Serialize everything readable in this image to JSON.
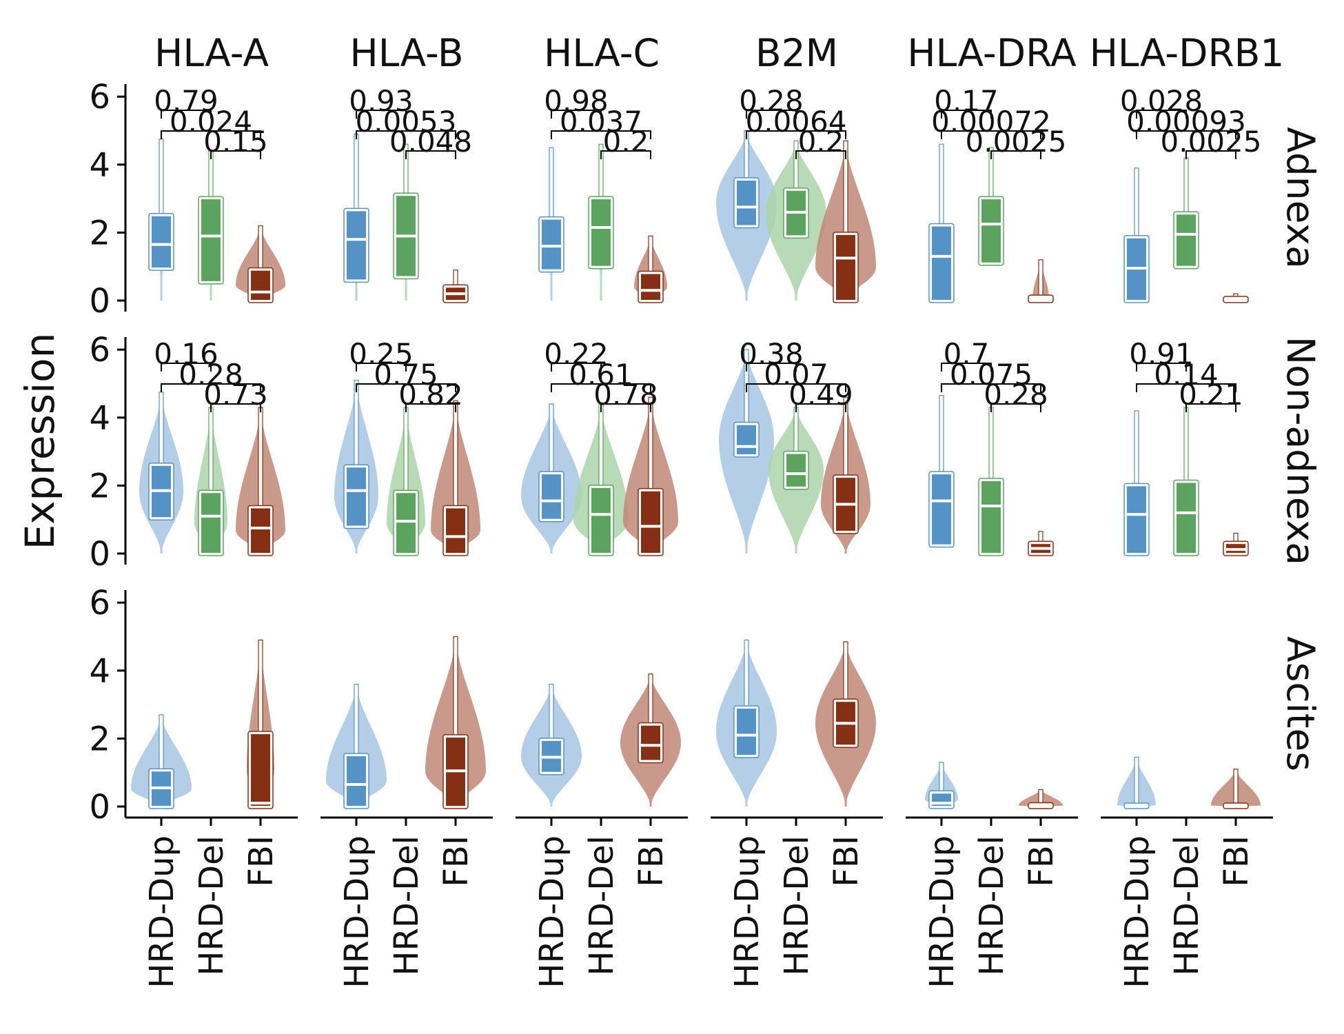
{
  "chart_data": {
    "type": "violin",
    "ylabel": "Expression",
    "ylim": [
      0,
      6.3
    ],
    "yticks": [
      "0",
      "2",
      "4",
      "6"
    ],
    "categories": [
      "HRD-Dup",
      "HRD-Del",
      "FBI"
    ],
    "columns": [
      "HLA-A",
      "HLA-B",
      "HLA-C",
      "B2M",
      "HLA-DRA",
      "HLA-DRB1"
    ],
    "rows": [
      "Adnexa",
      "Non-adnexa",
      "Ascites"
    ],
    "series_colors": {
      "HRD-Dup": {
        "violin": "#a8c6e3",
        "box": "#5592c6"
      },
      "HRD-Del": {
        "violin": "#acd3a9",
        "box": "#5ba35e"
      },
      "FBI": {
        "violin": "#bf8878",
        "box": "#852f14"
      }
    },
    "pvalues": [
      [
        [
          "0.79",
          "0.024",
          "0.15"
        ],
        [
          "0.93",
          "0.0053",
          "0.048"
        ],
        [
          "0.98",
          "0.037",
          "0.2"
        ],
        [
          "0.28",
          "0.0064",
          "0.2"
        ],
        [
          "0.17",
          "0.00072",
          "0.0025"
        ],
        [
          "0.028",
          "0.00093",
          "0.0025"
        ]
      ],
      [
        [
          "0.16",
          "0.28",
          "0.73"
        ],
        [
          "0.25",
          "0.75",
          "0.82"
        ],
        [
          "0.22",
          "0.61",
          "0.78"
        ],
        [
          "0.38",
          "0.07",
          "0.49"
        ],
        [
          "0.7",
          "0.075",
          "0.28"
        ],
        [
          "0.91",
          "0.14",
          "0.21"
        ]
      ],
      null
    ],
    "panels": [
      [
        [
          {
            "q1": 0.95,
            "med": 1.65,
            "q3": 2.5,
            "max": 4.75,
            "w": 0.04
          },
          {
            "q1": 0.55,
            "med": 1.9,
            "q3": 3.0,
            "max": 4.4,
            "w": 0.05
          },
          {
            "q1": 0.0,
            "med": 0.25,
            "q3": 0.9,
            "max": 2.2,
            "w": 0.45
          }
        ],
        [
          {
            "q1": 0.6,
            "med": 1.8,
            "q3": 2.65,
            "max": 4.9,
            "w": 0.04
          },
          {
            "q1": 0.7,
            "med": 1.9,
            "q3": 3.1,
            "max": 4.6,
            "w": 0.05
          },
          {
            "q1": 0.0,
            "med": 0.2,
            "q3": 0.4,
            "max": 0.9,
            "w": 0.0
          }
        ],
        [
          {
            "q1": 0.9,
            "med": 1.6,
            "q3": 2.4,
            "max": 4.5,
            "w": 0.04
          },
          {
            "q1": 1.0,
            "med": 2.15,
            "q3": 3.0,
            "max": 4.6,
            "w": 0.05
          },
          {
            "q1": 0.0,
            "med": 0.3,
            "q3": 0.8,
            "max": 1.9,
            "w": 0.3
          }
        ],
        [
          {
            "q1": 2.2,
            "med": 2.75,
            "q3": 3.55,
            "max": 5.0,
            "w": 0.55
          },
          {
            "q1": 1.9,
            "med": 2.6,
            "q3": 3.25,
            "max": 4.7,
            "w": 0.55
          },
          {
            "q1": 0.0,
            "med": 1.25,
            "q3": 1.95,
            "max": 4.7,
            "w": 0.55
          }
        ],
        [
          {
            "q1": 0.0,
            "med": 1.3,
            "q3": 2.2,
            "max": 4.6,
            "w": 0.0
          },
          {
            "q1": 1.1,
            "med": 2.25,
            "q3": 3.0,
            "max": 4.5,
            "w": 0.0
          },
          {
            "q1": 0.0,
            "med": 0.05,
            "q3": 0.1,
            "max": 1.2,
            "w": 0.15
          }
        ],
        [
          {
            "q1": 0.0,
            "med": 0.95,
            "q3": 1.85,
            "max": 3.9,
            "w": 0.0
          },
          {
            "q1": 1.0,
            "med": 1.95,
            "q3": 2.55,
            "max": 4.2,
            "w": 0.0
          },
          {
            "q1": 0.0,
            "med": 0.03,
            "q3": 0.06,
            "max": 0.2,
            "w": 0.15
          }
        ]
      ],
      [
        [
          {
            "q1": 1.05,
            "med": 1.85,
            "q3": 2.6,
            "max": 4.75,
            "w": 0.4
          },
          {
            "q1": 0.0,
            "med": 1.1,
            "q3": 1.8,
            "max": 4.3,
            "w": 0.3
          },
          {
            "q1": 0.0,
            "med": 0.75,
            "q3": 1.35,
            "max": 4.3,
            "w": 0.45
          }
        ],
        [
          {
            "q1": 0.8,
            "med": 1.85,
            "q3": 2.55,
            "max": 5.1,
            "w": 0.4
          },
          {
            "q1": 0.0,
            "med": 0.95,
            "q3": 1.8,
            "max": 4.3,
            "w": 0.35
          },
          {
            "q1": 0.0,
            "med": 0.5,
            "q3": 1.35,
            "max": 4.5,
            "w": 0.45
          }
        ],
        [
          {
            "q1": 1.0,
            "med": 1.55,
            "q3": 2.35,
            "max": 4.4,
            "w": 0.55
          },
          {
            "q1": 0.0,
            "med": 1.15,
            "q3": 1.95,
            "max": 4.4,
            "w": 0.5
          },
          {
            "q1": 0.0,
            "med": 0.8,
            "q3": 1.85,
            "max": 4.6,
            "w": 0.5
          }
        ],
        [
          {
            "q1": 2.9,
            "med": 3.15,
            "q3": 3.8,
            "max": 6.0,
            "w": 0.5
          },
          {
            "q1": 1.95,
            "med": 2.35,
            "q3": 2.95,
            "max": 4.3,
            "w": 0.5
          },
          {
            "q1": 0.65,
            "med": 1.45,
            "q3": 2.25,
            "max": 4.6,
            "w": 0.45
          }
        ],
        [
          {
            "q1": 0.25,
            "med": 1.55,
            "q3": 2.35,
            "max": 4.65,
            "w": 0.0
          },
          {
            "q1": 0.0,
            "med": 1.4,
            "q3": 2.15,
            "max": 4.3,
            "w": 0.0
          },
          {
            "q1": 0.0,
            "med": 0.15,
            "q3": 0.3,
            "max": 0.65,
            "w": 0.0
          }
        ],
        [
          {
            "q1": 0.0,
            "med": 1.15,
            "q3": 2.0,
            "max": 4.2,
            "w": 0.0
          },
          {
            "q1": 0.0,
            "med": 1.2,
            "q3": 2.1,
            "max": 4.3,
            "w": 0.0
          },
          {
            "q1": 0.0,
            "med": 0.12,
            "q3": 0.3,
            "max": 0.6,
            "w": 0.0
          }
        ]
      ],
      [
        [
          {
            "q1": 0.0,
            "med": 0.55,
            "q3": 1.05,
            "max": 2.7,
            "w": 0.55
          },
          null,
          {
            "q1": 0.0,
            "med": 0.1,
            "q3": 2.15,
            "max": 4.9,
            "w": 0.25
          }
        ],
        [
          {
            "q1": 0.0,
            "med": 0.65,
            "q3": 1.5,
            "max": 3.6,
            "w": 0.55
          },
          null,
          {
            "q1": 0.0,
            "med": 1.05,
            "q3": 2.05,
            "max": 5.0,
            "w": 0.55
          }
        ],
        [
          {
            "q1": 1.0,
            "med": 1.45,
            "q3": 1.95,
            "max": 3.6,
            "w": 0.55
          },
          null,
          {
            "q1": 1.35,
            "med": 1.8,
            "q3": 2.4,
            "max": 3.9,
            "w": 0.55
          }
        ],
        [
          {
            "q1": 1.5,
            "med": 2.1,
            "q3": 2.9,
            "max": 4.9,
            "w": 0.55
          },
          null,
          {
            "q1": 1.8,
            "med": 2.45,
            "q3": 3.1,
            "max": 4.85,
            "w": 0.55
          }
        ],
        [
          {
            "q1": 0.0,
            "med": 0.1,
            "q3": 0.4,
            "max": 1.3,
            "w": 0.3
          },
          null,
          {
            "q1": 0.0,
            "med": 0.02,
            "q3": 0.05,
            "max": 0.5,
            "w": 0.4
          }
        ],
        [
          {
            "q1": 0.0,
            "med": 0.02,
            "q3": 0.04,
            "max": 1.45,
            "w": 0.35
          },
          null,
          {
            "q1": 0.0,
            "med": 0.02,
            "q3": 0.04,
            "max": 1.1,
            "w": 0.45
          }
        ]
      ]
    ]
  }
}
